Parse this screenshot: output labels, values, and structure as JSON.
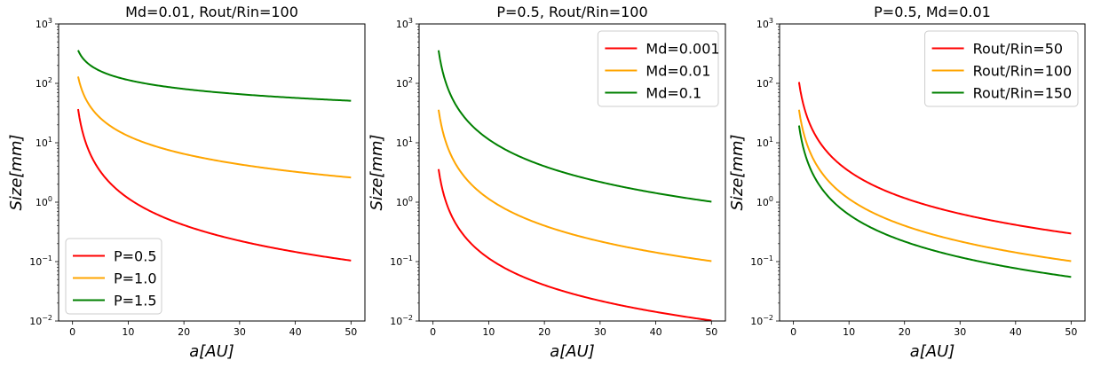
{
  "chart_data": [
    {
      "type": "line",
      "title": "Md=0.01,  Rout/Rin=100",
      "xlabel": "a[AU]",
      "ylabel": "Size[mm]",
      "xlim": [
        -2.5,
        52.5
      ],
      "ylim": [
        0.01,
        1000
      ],
      "yscale": "log",
      "xticks": [
        0,
        10,
        20,
        30,
        40,
        50
      ],
      "yticks": [
        0.01,
        0.1,
        1,
        10,
        100,
        1000
      ],
      "legend_position": "lower-left",
      "series": [
        {
          "name": "P=0.5",
          "color": "#ff0000",
          "law": "power",
          "coef": 36.8,
          "exponent": -1.5,
          "x_range": [
            1,
            50
          ]
        },
        {
          "name": "P=1.0",
          "color": "#ffa500",
          "law": "power",
          "coef": 130,
          "exponent": -1.0,
          "x_range": [
            1,
            50
          ]
        },
        {
          "name": "P=1.5",
          "color": "#008000",
          "law": "power",
          "coef": 360,
          "exponent": -0.5,
          "x_range": [
            1,
            50
          ]
        }
      ]
    },
    {
      "type": "line",
      "title": "P=0.5,  Rout/Rin=100",
      "xlabel": "a[AU]",
      "ylabel": "Size[mm]",
      "xlim": [
        -2.5,
        52.5
      ],
      "ylim": [
        0.01,
        1000
      ],
      "yscale": "log",
      "xticks": [
        0,
        10,
        20,
        30,
        40,
        50
      ],
      "yticks": [
        0.01,
        0.1,
        1,
        10,
        100,
        1000
      ],
      "legend_position": "upper-right",
      "series": [
        {
          "name": "Md=0.001",
          "color": "#ff0000",
          "law": "power",
          "coef": 3.6,
          "exponent": -1.5,
          "x_range": [
            1,
            50
          ]
        },
        {
          "name": "Md=0.01",
          "color": "#ffa500",
          "law": "power",
          "coef": 36,
          "exponent": -1.5,
          "x_range": [
            1,
            50
          ]
        },
        {
          "name": "Md=0.1",
          "color": "#008000",
          "law": "power",
          "coef": 360,
          "exponent": -1.5,
          "x_range": [
            1,
            50
          ]
        }
      ]
    },
    {
      "type": "line",
      "title": "P=0.5,  Md=0.01",
      "xlabel": "a[AU]",
      "ylabel": "Size[mm]",
      "xlim": [
        -2.5,
        52.5
      ],
      "ylim": [
        0.01,
        1000
      ],
      "yscale": "log",
      "xticks": [
        0,
        10,
        20,
        30,
        40,
        50
      ],
      "yticks": [
        0.01,
        0.1,
        1,
        10,
        100,
        1000
      ],
      "legend_position": "upper-right",
      "series": [
        {
          "name": "Rout/Rin=50",
          "color": "#ff0000",
          "law": "power",
          "coef": 105,
          "exponent": -1.5,
          "x_range": [
            1,
            50
          ]
        },
        {
          "name": "Rout/Rin=100",
          "color": "#ffa500",
          "law": "power",
          "coef": 36,
          "exponent": -1.5,
          "x_range": [
            1,
            50
          ]
        },
        {
          "name": "Rout/Rin=150",
          "color": "#008000",
          "law": "power",
          "coef": 19.5,
          "exponent": -1.5,
          "x_range": [
            1,
            50
          ]
        }
      ]
    }
  ]
}
